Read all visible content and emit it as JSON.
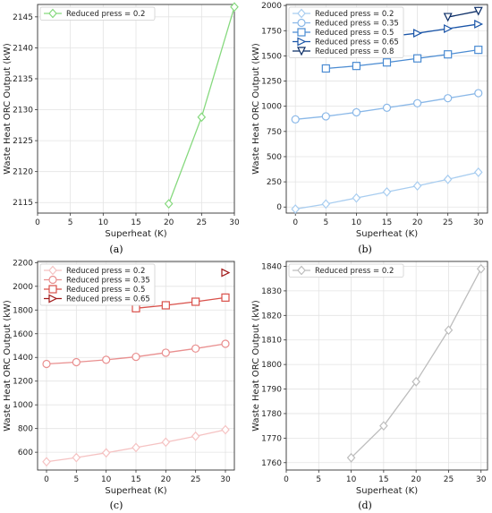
{
  "chart_data": [
    {
      "type": "line",
      "panel_label": "(a)",
      "xlabel": "Superheat (K)",
      "ylabel": "Waste Heat ORC Output (kW)",
      "xlim": [
        0,
        30
      ],
      "ylim": [
        2113.3,
        2147
      ],
      "xticks": [
        0,
        5,
        10,
        15,
        20,
        25,
        30
      ],
      "yticks": [
        2115,
        2120,
        2125,
        2130,
        2135,
        2140,
        2145
      ],
      "ytick_labels": [
        "2115",
        "2120",
        "2125",
        "2130",
        "2135",
        "2140",
        "2145"
      ],
      "grid": true,
      "legend_position": "top-left",
      "series": [
        {
          "name": "Reduced press = 0.2",
          "color": "#86d97e",
          "marker": "diamond",
          "x": [
            20,
            25,
            30
          ],
          "y": [
            2114.8,
            2128.8,
            2146.6
          ]
        }
      ]
    },
    {
      "type": "line",
      "panel_label": "(b)",
      "xlabel": "Superheat (K)",
      "ylabel": "Waste Heat ORC Output (kW)",
      "xlim": [
        -1.5,
        31.5
      ],
      "ylim": [
        -60,
        2010
      ],
      "xticks": [
        0,
        5,
        10,
        15,
        20,
        25,
        30
      ],
      "yticks": [
        0,
        250,
        500,
        750,
        1000,
        1250,
        1500,
        1750,
        2000
      ],
      "ytick_labels": [
        "0",
        "250",
        "500",
        "750",
        "1000",
        "1250",
        "1500",
        "1750",
        "2000"
      ],
      "grid": true,
      "legend_position": "top-left",
      "series": [
        {
          "name": "Reduced press = 0.2",
          "color": "#a8cdf0",
          "marker": "diamond",
          "x": [
            0,
            5,
            10,
            15,
            20,
            25,
            30
          ],
          "y": [
            -20,
            30,
            90,
            150,
            210,
            275,
            345
          ]
        },
        {
          "name": "Reduced press = 0.35",
          "color": "#8ab8e8",
          "marker": "circle",
          "x": [
            0,
            5,
            10,
            15,
            20,
            25,
            30
          ],
          "y": [
            870,
            900,
            940,
            985,
            1030,
            1080,
            1130
          ]
        },
        {
          "name": "Reduced press = 0.5",
          "color": "#4a8bd2",
          "marker": "square",
          "x": [
            5,
            10,
            15,
            20,
            25,
            30
          ],
          "y": [
            1375,
            1400,
            1435,
            1475,
            1515,
            1560
          ]
        },
        {
          "name": "Reduced press = 0.65",
          "color": "#1a55a8",
          "marker": "triangle-right",
          "x": [
            15,
            20,
            25,
            30
          ],
          "y": [
            1690,
            1725,
            1770,
            1815
          ]
        },
        {
          "name": "Reduced press = 0.8",
          "color": "#0b2d66",
          "marker": "triangle-down",
          "x": [
            25,
            30
          ],
          "y": [
            1885,
            1945
          ]
        }
      ]
    },
    {
      "type": "line",
      "panel_label": "(c)",
      "xlabel": "Superheat (K)",
      "ylabel": "Waste Heat ORC Output (kW)",
      "xlim": [
        -1.5,
        31.5
      ],
      "ylim": [
        450,
        2210
      ],
      "xticks": [
        0,
        5,
        10,
        15,
        20,
        25,
        30
      ],
      "yticks": [
        600,
        800,
        1000,
        1200,
        1400,
        1600,
        1800,
        2000,
        2200
      ],
      "ytick_labels": [
        "600",
        "800",
        "1000",
        "1200",
        "1400",
        "1600",
        "1800",
        "2000",
        "2200"
      ],
      "grid": true,
      "legend_position": "top-left",
      "series": [
        {
          "name": "Reduced press = 0.2",
          "color": "#f5c2c2",
          "marker": "diamond",
          "x": [
            0,
            5,
            10,
            15,
            20,
            25,
            30
          ],
          "y": [
            520,
            555,
            595,
            640,
            685,
            735,
            790
          ]
        },
        {
          "name": "Reduced press = 0.35",
          "color": "#e98f8f",
          "marker": "circle",
          "x": [
            0,
            5,
            10,
            15,
            20,
            25,
            30
          ],
          "y": [
            1345,
            1360,
            1380,
            1405,
            1440,
            1475,
            1515
          ]
        },
        {
          "name": "Reduced press = 0.5",
          "color": "#d9504a",
          "marker": "square",
          "x": [
            15,
            20,
            25,
            30
          ],
          "y": [
            1815,
            1840,
            1870,
            1905
          ]
        },
        {
          "name": "Reduced press = 0.65",
          "color": "#a01818",
          "marker": "triangle-right",
          "x": [
            30
          ],
          "y": [
            2115
          ]
        }
      ]
    },
    {
      "type": "line",
      "panel_label": "(d)",
      "xlabel": "Superheat (K)",
      "ylabel": "Waste Heat ORC Output (kW)",
      "xlim": [
        0,
        31
      ],
      "ylim": [
        1757,
        1842
      ],
      "xticks": [
        0,
        5,
        10,
        15,
        20,
        25,
        30
      ],
      "yticks": [
        1760,
        1770,
        1780,
        1790,
        1800,
        1810,
        1820,
        1830,
        1840
      ],
      "ytick_labels": [
        "1760",
        "1770",
        "1780",
        "1790",
        "1800",
        "1810",
        "1820",
        "1830",
        "1840"
      ],
      "grid": true,
      "legend_position": "top-left",
      "series": [
        {
          "name": "Reduced press = 0.2",
          "color": "#bdbdbd",
          "marker": "diamond",
          "x": [
            10,
            15,
            20,
            25,
            30
          ],
          "y": [
            1762,
            1775,
            1793,
            1814,
            1839
          ]
        }
      ]
    }
  ]
}
